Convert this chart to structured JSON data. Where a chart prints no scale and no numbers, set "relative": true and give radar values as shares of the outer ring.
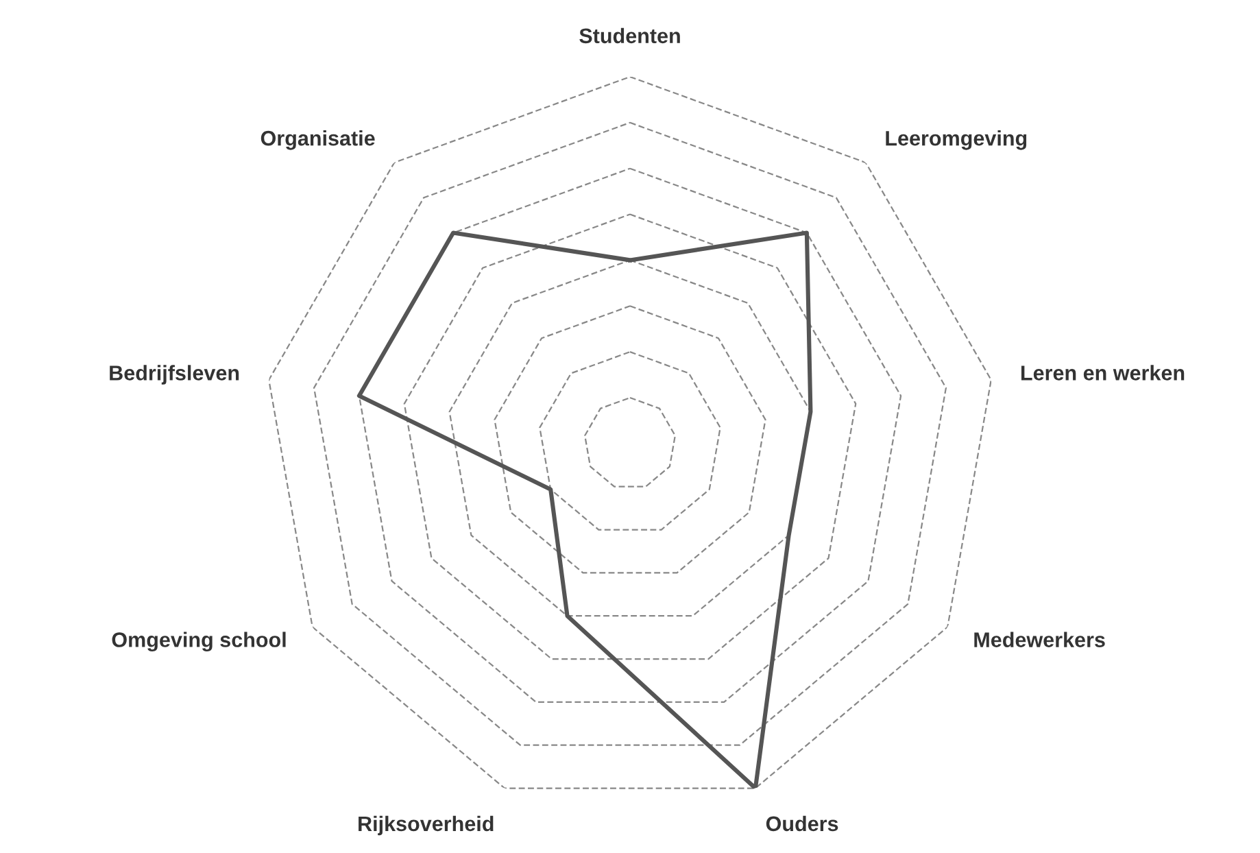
{
  "chart_data": {
    "type": "radar",
    "relative": true,
    "grid": true,
    "marker": "none",
    "line_style": "solid",
    "categories": [
      "Studenten",
      "Leeromgeving",
      "Leren en werken",
      "Medewerkers",
      "Ouders",
      "Rijksoverheid",
      "Omgeving school",
      "Bedrijfsleven",
      "Organisatie"
    ],
    "series": [
      {
        "color": "#555555",
        "values": [
          0.5,
          0.75,
          0.5,
          0.5,
          1.0,
          0.5,
          0.25,
          0.75,
          0.75
        ]
      }
    ]
  }
}
